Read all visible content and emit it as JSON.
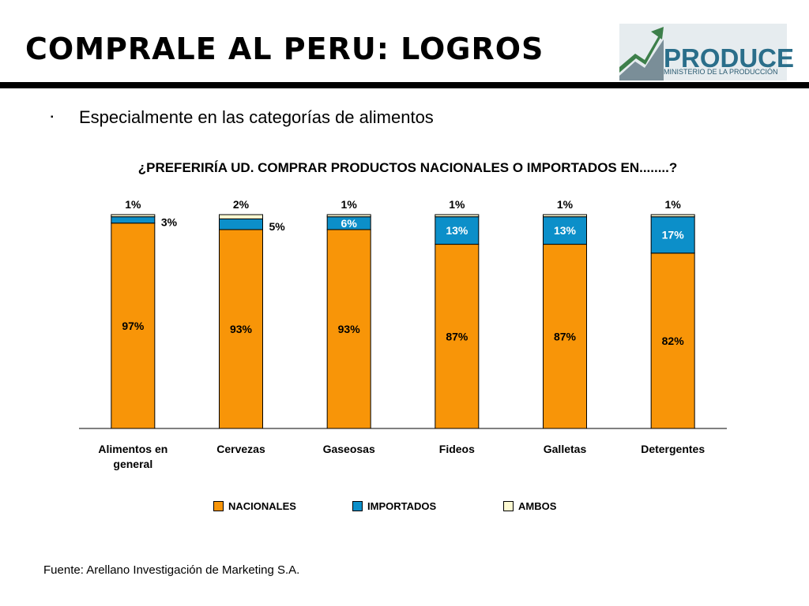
{
  "header": {
    "title": "COMPRALE AL PERU: LOGROS",
    "logo_word": "PRODUCE",
    "logo_subtitle": "MINISTERIO DE LA PRODUCCIÓN"
  },
  "bullet": {
    "marker": "▪",
    "text": "Especialmente en las categorías de alimentos"
  },
  "chart_data": {
    "type": "bar",
    "stacked": true,
    "title": "¿PREFERIRÍA UD. COMPRAR PRODUCTOS NACIONALES O IMPORTADOS EN........?",
    "categories": [
      "Alimentos en general",
      "Cervezas",
      "Gaseosas",
      "Fideos",
      "Galletas",
      "Detergentes"
    ],
    "series": [
      {
        "name": "NACIONALES",
        "values": [
          97,
          93,
          93,
          87,
          87,
          82
        ],
        "labels": [
          "97%",
          "93%",
          "93%",
          "87%",
          "87%",
          "82%"
        ],
        "color": "#f89508"
      },
      {
        "name": "IMPORTADOS",
        "values": [
          3,
          5,
          6,
          13,
          13,
          17
        ],
        "labels": [
          "3%",
          "5%",
          "6%",
          "13%",
          "13%",
          "17%"
        ],
        "color": "#0c8fc9"
      },
      {
        "name": "AMBOS",
        "values": [
          1,
          2,
          1,
          1,
          1,
          1
        ],
        "labels": [
          "1%",
          "2%",
          "1%",
          "1%",
          "1%",
          "1%"
        ],
        "color": "#fdfad2"
      }
    ],
    "ylim": [
      0,
      100
    ],
    "grid": false,
    "legend": "bottom"
  },
  "source": "Fuente: Arellano Investigación de Marketing S.A."
}
